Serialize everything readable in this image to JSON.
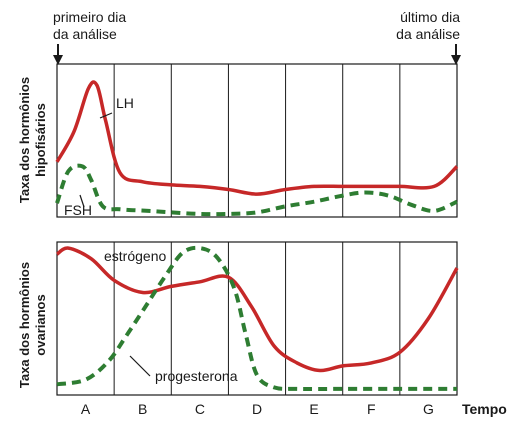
{
  "annotations": {
    "first_day": [
      "primeiro dia",
      "da análise"
    ],
    "last_day": [
      "último dia",
      "da análise"
    ]
  },
  "x_axis": {
    "label": "Tempo",
    "categories": [
      "A",
      "B",
      "C",
      "D",
      "E",
      "F",
      "G"
    ]
  },
  "colors": {
    "solid": "#c62828",
    "dashed": "#2e7d32",
    "grid": "#1a1a1a"
  },
  "chart_data": [
    {
      "type": "line",
      "ylabel": [
        "Taxa dos hormônios",
        "hipofisários"
      ],
      "xlabel": "",
      "xlim": [
        0,
        7
      ],
      "ylim": [
        0,
        100
      ],
      "series": [
        {
          "name": "LH",
          "style": "solid",
          "x": [
            0,
            0.3,
            0.55,
            0.7,
            0.85,
            1.1,
            1.5,
            2.0,
            2.5,
            3.0,
            3.5,
            4.0,
            4.5,
            5.0,
            5.5,
            6.0,
            6.6,
            7.0
          ],
          "y": [
            36,
            56,
            84,
            86,
            63,
            29,
            23,
            21,
            20,
            18,
            15,
            18,
            20,
            20,
            20,
            20,
            20,
            33
          ]
        },
        {
          "name": "FSH",
          "style": "dashed",
          "x": [
            0,
            0.2,
            0.45,
            0.6,
            0.8,
            1.1,
            1.6,
            2.0,
            2.5,
            3.0,
            3.5,
            4.0,
            4.5,
            5.0,
            5.4,
            5.8,
            6.2,
            6.6,
            7.0
          ],
          "y": [
            9,
            30,
            33,
            24,
            7,
            5,
            4,
            3,
            2,
            2,
            3,
            7,
            10,
            14,
            16,
            14,
            8,
            4,
            10
          ]
        }
      ]
    },
    {
      "type": "line",
      "ylabel": [
        "Taxa dos hormônios",
        "ovarianos"
      ],
      "xlabel": "",
      "xlim": [
        0,
        7
      ],
      "ylim": [
        0,
        100
      ],
      "series": [
        {
          "name": "estrógeno",
          "style": "solid",
          "x": [
            0,
            0.2,
            0.6,
            1.0,
            1.5,
            2.0,
            2.5,
            3.0,
            3.4,
            3.8,
            4.2,
            4.6,
            5.0,
            5.5,
            6.0,
            6.5,
            7.0
          ],
          "y": [
            92,
            96,
            89,
            75,
            67,
            71,
            74,
            77,
            58,
            32,
            21,
            16,
            19,
            21,
            28,
            50,
            83
          ]
        },
        {
          "name": "progesterona",
          "style": "dashed",
          "x": [
            0,
            0.5,
            0.9,
            1.2,
            1.5,
            1.9,
            2.2,
            2.5,
            2.8,
            3.1,
            3.3,
            3.5,
            3.8,
            4.2,
            5.0,
            6.0,
            7.0
          ],
          "y": [
            7,
            10,
            22,
            38,
            55,
            78,
            93,
            96,
            90,
            70,
            40,
            13,
            5,
            4,
            4,
            4,
            4
          ]
        }
      ]
    }
  ]
}
